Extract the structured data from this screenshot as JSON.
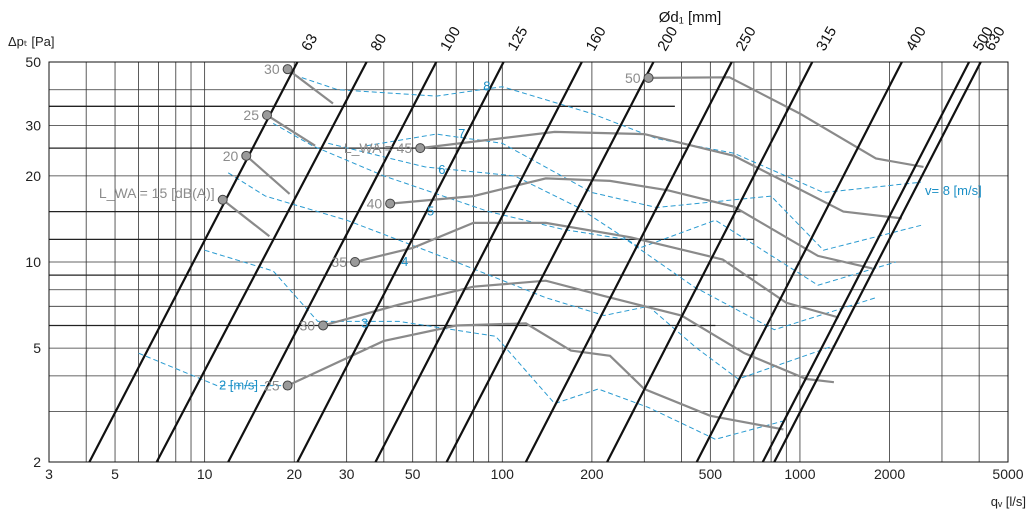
{
  "chart_data": {
    "type": "line",
    "title": "Ød₁ [mm]",
    "xlabel": "qᵥ [l/s]",
    "ylabel": "Δpₜ [Pa]",
    "x_scale": "log",
    "y_scale": "log",
    "xlim": [
      3,
      5000
    ],
    "ylim": [
      2,
      50
    ],
    "grid": true,
    "x_ticks": [
      3,
      5,
      10,
      20,
      30,
      50,
      100,
      200,
      500,
      1000,
      2000,
      5000
    ],
    "y_ticks": [
      2,
      5,
      10,
      20,
      30,
      50
    ],
    "x_tick_labels": [
      "3",
      "5",
      "10",
      "20",
      "30",
      "50",
      "100",
      "200",
      "500",
      "1000",
      "2000",
      "5000"
    ],
    "y_tick_labels": [
      "2",
      "5",
      "10",
      "20",
      "30",
      "50"
    ],
    "duct_diameters": [
      {
        "label": "63",
        "qv_at_2Pa": 4.1,
        "qv_at_50Pa": 20.5
      },
      {
        "label": "80",
        "qv_at_2Pa": 6.9,
        "qv_at_50Pa": 35
      },
      {
        "label": "100",
        "qv_at_2Pa": 12,
        "qv_at_50Pa": 60
      },
      {
        "label": "125",
        "qv_at_2Pa": 20.5,
        "qv_at_50Pa": 101
      },
      {
        "label": "160",
        "qv_at_2Pa": 37.5,
        "qv_at_50Pa": 185
      },
      {
        "label": "200",
        "qv_at_2Pa": 65,
        "qv_at_50Pa": 322
      },
      {
        "label": "250",
        "qv_at_2Pa": 120,
        "qv_at_50Pa": 590
      },
      {
        "label": "315",
        "qv_at_2Pa": 225,
        "qv_at_50Pa": 1100
      },
      {
        "label": "400",
        "qv_at_2Pa": 450,
        "qv_at_50Pa": 2200
      },
      {
        "label": "500",
        "qv_at_2Pa": 750,
        "qv_at_50Pa": 3700
      },
      {
        "label": "630",
        "qv_at_2Pa": 820,
        "qv_at_50Pa": 4050
      }
    ],
    "velocity_lines": [
      {
        "label": "2 [m/s]",
        "points": [
          [
            6,
            4.8
          ],
          [
            11,
            3.7
          ],
          [
            19,
            3.7
          ]
        ],
        "label_at": [
          11,
          3.7
        ]
      },
      {
        "label": "3",
        "points": [
          [
            10,
            11
          ],
          [
            17,
            9.3
          ],
          [
            24,
            6.2
          ],
          [
            45,
            6.2
          ],
          [
            95,
            5.5
          ],
          [
            150,
            3.2
          ],
          [
            210,
            3.6
          ],
          [
            310,
            3.1
          ],
          [
            520,
            2.4
          ],
          [
            900,
            2.8
          ]
        ],
        "label_at": [
          33,
          6.1
        ]
      },
      {
        "label": "4",
        "points": [
          [
            12,
            20.5
          ],
          [
            16,
            17
          ],
          [
            30,
            14
          ],
          [
            70,
            10
          ],
          [
            140,
            7.5
          ],
          [
            220,
            6.5
          ],
          [
            310,
            7
          ],
          [
            450,
            5
          ],
          [
            620,
            3.9
          ],
          [
            1300,
            5.1
          ]
        ],
        "label_at": [
          45,
          10
        ]
      },
      {
        "label": "5",
        "points": [
          [
            17,
            30.5
          ],
          [
            23,
            25.5
          ],
          [
            40,
            20
          ],
          [
            90,
            15
          ],
          [
            160,
            13
          ],
          [
            260,
            12
          ],
          [
            440,
            8.2
          ],
          [
            820,
            5.8
          ],
          [
            1800,
            7.5
          ]
        ],
        "label_at": [
          55,
          15
        ]
      },
      {
        "label": "6",
        "points": [
          [
            26,
            26
          ],
          [
            55,
            21.5
          ],
          [
            110,
            20
          ],
          [
            180,
            15.5
          ],
          [
            290,
            11.2
          ],
          [
            520,
            14
          ],
          [
            1150,
            8.3
          ],
          [
            2100,
            10
          ]
        ],
        "label_at": [
          60,
          21
        ]
      },
      {
        "label": "7",
        "points": [
          [
            35,
            25.5
          ],
          [
            60,
            28
          ],
          [
            100,
            26
          ],
          [
            200,
            17.5
          ],
          [
            330,
            15.5
          ],
          [
            800,
            17
          ],
          [
            1200,
            11
          ],
          [
            2600,
            13.5
          ]
        ],
        "label_at": [
          70,
          28
        ]
      },
      {
        "label": "8",
        "points": [
          [
            20,
            45
          ],
          [
            28,
            40
          ],
          [
            60,
            38
          ],
          [
            100,
            41
          ],
          [
            200,
            33
          ],
          [
            330,
            27
          ],
          [
            600,
            24
          ],
          [
            1200,
            17.5
          ],
          [
            2550,
            19
          ]
        ],
        "label_at": [
          85,
          41
        ]
      }
    ],
    "velocity_unit_label": "v= 8 [m/s]",
    "noise_curves": [
      {
        "label": "25",
        "points": [
          [
            19,
            3.7
          ],
          [
            40,
            5.3
          ],
          [
            70,
            6
          ],
          [
            120,
            6.1
          ],
          [
            170,
            4.9
          ],
          [
            230,
            4.7
          ],
          [
            300,
            3.6
          ],
          [
            500,
            2.9
          ],
          [
            880,
            2.6
          ]
        ],
        "marker": [
          19,
          3.7
        ]
      },
      {
        "label": "30",
        "points": [
          [
            25,
            6
          ],
          [
            45,
            7.1
          ],
          [
            80,
            8.2
          ],
          [
            140,
            8.6
          ],
          [
            220,
            7.6
          ],
          [
            400,
            6.5
          ],
          [
            650,
            4.8
          ],
          [
            1050,
            3.9
          ],
          [
            1300,
            3.8
          ]
        ],
        "marker": [
          25,
          6
        ]
      },
      {
        "label": "35",
        "points": [
          [
            32,
            10
          ],
          [
            50,
            11.2
          ],
          [
            80,
            13.7
          ],
          [
            140,
            13.7
          ],
          [
            270,
            12.2
          ],
          [
            550,
            10.2
          ],
          [
            900,
            7.2
          ],
          [
            1350,
            6.4
          ]
        ],
        "marker": [
          32,
          10
        ]
      },
      {
        "label": "40",
        "points": [
          [
            42,
            16
          ],
          [
            80,
            17
          ],
          [
            140,
            19.6
          ],
          [
            230,
            19.2
          ],
          [
            360,
            17.8
          ],
          [
            600,
            15.6
          ],
          [
            1150,
            10.5
          ],
          [
            1750,
            9.5
          ]
        ],
        "marker": [
          42,
          16
        ]
      },
      {
        "label": "45",
        "points": [
          [
            53,
            25
          ],
          [
            150,
            28.5
          ],
          [
            300,
            28
          ],
          [
            600,
            23.5
          ],
          [
            1400,
            15
          ],
          [
            2200,
            14.2
          ]
        ],
        "marker": [
          53,
          25
        ]
      },
      {
        "label": "50",
        "points": [
          [
            310,
            44
          ],
          [
            580,
            44.2
          ],
          [
            1000,
            33
          ],
          [
            1800,
            23
          ],
          [
            2600,
            21.5
          ]
        ],
        "marker": [
          310,
          44
        ]
      },
      {
        "label": "15",
        "points": [
          [
            11.5,
            16.5
          ],
          [
            16.5,
            12.3
          ]
        ],
        "marker": [
          11.5,
          16.5
        ]
      },
      {
        "label": "20",
        "points": [
          [
            13.8,
            23.5
          ],
          [
            19.3,
            17.3
          ]
        ],
        "marker": [
          13.8,
          23.5
        ]
      },
      {
        "label": "25",
        "points": [
          [
            16.2,
            32.6
          ],
          [
            23.5,
            25.5
          ]
        ],
        "marker": [
          16.2,
          32.6
        ]
      },
      {
        "label": "30",
        "points": [
          [
            19,
            47.2
          ],
          [
            27,
            35.8
          ]
        ],
        "marker": [
          19,
          47.2
        ]
      }
    ],
    "noise_labels": {
      "lwa15": "L_WA = 15 [dB(A)]",
      "lwa45": "L_WA = 45"
    }
  }
}
